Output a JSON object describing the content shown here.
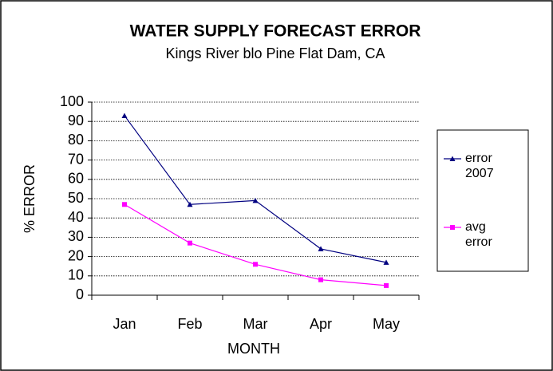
{
  "chart_data": {
    "type": "line",
    "title": "WATER SUPPLY FORECAST ERROR",
    "subtitle": "Kings River blo Pine Flat Dam, CA",
    "x_label": "MONTH",
    "y_label": "% ERROR",
    "categories": [
      "Jan",
      "Feb",
      "Mar",
      "Apr",
      "May"
    ],
    "series": [
      {
        "name": "error 2007",
        "color": "#000080",
        "marker": "triangle",
        "values": [
          93,
          47,
          49,
          24,
          17
        ]
      },
      {
        "name": "avg error",
        "color": "#ff00ff",
        "marker": "square",
        "values": [
          47,
          27,
          16,
          8,
          5
        ]
      }
    ],
    "ylim": [
      0,
      100
    ],
    "yticks": [
      0,
      10,
      20,
      30,
      40,
      50,
      60,
      70,
      80,
      90,
      100
    ],
    "grid": true,
    "legend": "right"
  }
}
